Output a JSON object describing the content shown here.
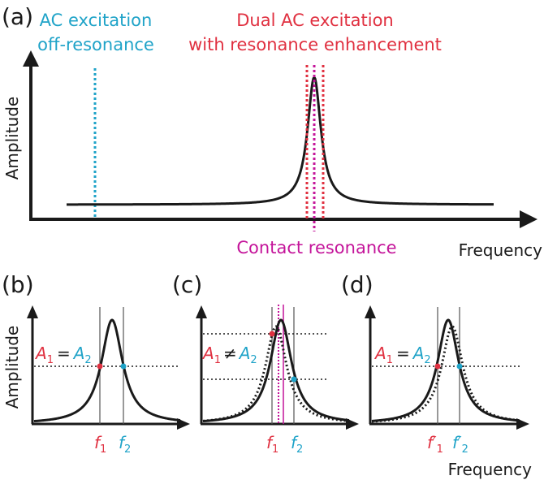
{
  "colors": {
    "black": "#1a1a1a",
    "cyan": "#1fa3c8",
    "red": "#e03040",
    "magenta": "#c4149a",
    "gray": "#555555"
  },
  "panel_a": {
    "label": "(a)",
    "ylabel": "Amplitude",
    "xlabel": "Frequency",
    "ac_title_line1": "AC excitation",
    "ac_title_line2": "off-resonance",
    "dual_title_line1": "Dual AC excitation",
    "dual_title_line2": "with resonance enhancement",
    "resonance_label": "Contact resonance"
  },
  "panel_b": {
    "label": "(b)",
    "ylabel": "Amplitude",
    "eq_A1": "A",
    "eq_sub1": "1",
    "eq_op": "=",
    "eq_A2": "A",
    "eq_sub2": "2",
    "f1": "f",
    "f1_sub": "1",
    "f2": "f",
    "f2_sub": "2"
  },
  "panel_c": {
    "label": "(c)",
    "eq_A1": "A",
    "eq_sub1": "1",
    "eq_op": "≠",
    "eq_A2": "A",
    "eq_sub2": "2",
    "f1": "f",
    "f1_sub": "1",
    "f2": "f",
    "f2_sub": "2"
  },
  "panel_d": {
    "label": "(d)",
    "xlabel": "Frequency",
    "eq_A1": "A",
    "eq_sub1": "1",
    "eq_op": "=",
    "eq_A2": "A",
    "eq_sub2": "2",
    "f1": "f′",
    "f1_sub": "1",
    "f2": "f′",
    "f2_sub": "2"
  }
}
